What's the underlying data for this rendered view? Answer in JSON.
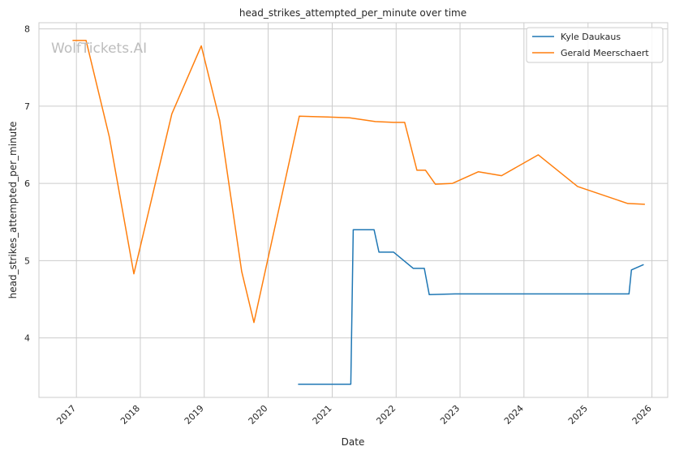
{
  "watermark": "WolfTickets.AI",
  "chart_data": {
    "type": "line",
    "title": "head_strikes_attempted_per_minute over time",
    "xlabel": "Date",
    "ylabel": "head_strikes_attempted_per_minute",
    "x_type": "date",
    "xlim": [
      "2016-06-01",
      "2026-04-01"
    ],
    "ylim": [
      3.23,
      8.08
    ],
    "x_ticks": [
      "2017",
      "2018",
      "2019",
      "2020",
      "2021",
      "2022",
      "2023",
      "2024",
      "2025",
      "2026"
    ],
    "y_ticks": [
      4,
      5,
      6,
      7,
      8
    ],
    "grid": true,
    "legend_position": "top-right",
    "series": [
      {
        "name": "Kyle Daukaus",
        "color": "#1f77b4",
        "points": [
          [
            "2020-06-20",
            3.4
          ],
          [
            "2021-04-17",
            3.4
          ],
          [
            "2021-05-01",
            5.4
          ],
          [
            "2021-08-28",
            5.4
          ],
          [
            "2021-09-25",
            5.11
          ],
          [
            "2021-12-18",
            5.11
          ],
          [
            "2022-04-09",
            4.9
          ],
          [
            "2022-06-11",
            4.9
          ],
          [
            "2022-07-09",
            4.56
          ],
          [
            "2022-12-03",
            4.57
          ],
          [
            "2025-08-23",
            4.57
          ],
          [
            "2025-09-06",
            4.88
          ],
          [
            "2025-11-15",
            4.95
          ]
        ]
      },
      {
        "name": "Gerald Meerschaert",
        "color": "#ff7f0e",
        "points": [
          [
            "2016-12-10",
            7.85
          ],
          [
            "2017-02-25",
            7.85
          ],
          [
            "2017-07-08",
            6.6
          ],
          [
            "2017-11-25",
            4.83
          ],
          [
            "2018-06-30",
            6.9
          ],
          [
            "2018-12-15",
            7.78
          ],
          [
            "2019-03-30",
            6.82
          ],
          [
            "2019-08-03",
            4.86
          ],
          [
            "2019-10-12",
            4.2
          ],
          [
            "2020-06-27",
            6.87
          ],
          [
            "2020-12-05",
            6.86
          ],
          [
            "2021-04-10",
            6.85
          ],
          [
            "2021-09-04",
            6.8
          ],
          [
            "2021-12-18",
            6.79
          ],
          [
            "2022-02-19",
            6.79
          ],
          [
            "2022-04-30",
            6.17
          ],
          [
            "2022-06-18",
            6.17
          ],
          [
            "2022-08-13",
            5.99
          ],
          [
            "2022-11-19",
            6.0
          ],
          [
            "2023-04-15",
            6.15
          ],
          [
            "2023-08-26",
            6.1
          ],
          [
            "2024-03-23",
            6.37
          ],
          [
            "2024-11-02",
            5.96
          ],
          [
            "2025-08-16",
            5.74
          ],
          [
            "2025-11-22",
            5.73
          ]
        ]
      }
    ]
  }
}
